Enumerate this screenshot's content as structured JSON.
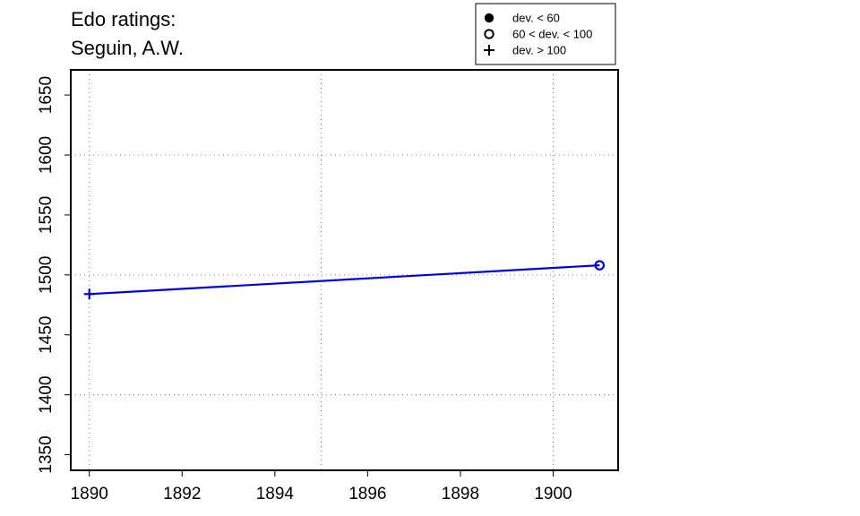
{
  "chart_data": {
    "type": "line",
    "title_lines": [
      "Edo ratings:",
      "Seguin, A.W."
    ],
    "xlabel": "",
    "ylabel": "",
    "xlim": [
      1889.6,
      1901.4
    ],
    "ylim": [
      1337,
      1671
    ],
    "x_ticks": [
      1890,
      1892,
      1894,
      1896,
      1898,
      1900
    ],
    "y_ticks": [
      1350,
      1400,
      1450,
      1500,
      1550,
      1600,
      1650
    ],
    "x_grid": [
      1890,
      1895,
      1900
    ],
    "y_grid": [
      1400,
      1500,
      1600
    ],
    "grid": true,
    "series": [
      {
        "color": "#0000ee",
        "x": [
          1890,
          1901
        ],
        "y": [
          1484,
          1508
        ],
        "markers": [
          "plus",
          "open-circle"
        ]
      }
    ],
    "legend": {
      "placement": "top-right",
      "entries": [
        {
          "marker": "filled-circle",
          "label": "dev. < 60"
        },
        {
          "marker": "open-circle",
          "label": "60 < dev. < 100"
        },
        {
          "marker": "plus",
          "label": "dev. > 100"
        }
      ]
    }
  }
}
